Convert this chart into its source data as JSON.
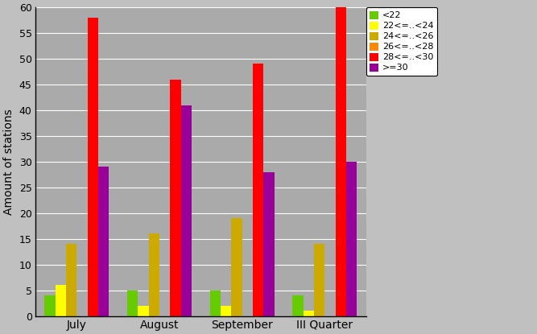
{
  "categories": [
    "July",
    "August",
    "September",
    "III Quarter"
  ],
  "series": [
    {
      "label": "<22",
      "color": "#66cc00",
      "values": [
        4,
        5,
        5,
        4
      ]
    },
    {
      "label": "22<=..<24",
      "color": "#ffff00",
      "values": [
        6,
        2,
        2,
        1
      ]
    },
    {
      "label": "24<=..<26",
      "color": "#ccaa00",
      "values": [
        14,
        16,
        19,
        14
      ]
    },
    {
      "label": "26<=..<28",
      "color": "#ff8800",
      "values": [
        0,
        0,
        0,
        0
      ]
    },
    {
      "label": "28<=..<30",
      "color": "#ff0000",
      "values": [
        58,
        46,
        49,
        60
      ]
    },
    {
      "label": ">=30",
      "color": "#990099",
      "values": [
        29,
        41,
        28,
        30
      ]
    }
  ],
  "ylabel": "Amount of stations",
  "ylim": [
    0,
    60
  ],
  "yticks": [
    0,
    5,
    10,
    15,
    20,
    25,
    30,
    35,
    40,
    45,
    50,
    55,
    60
  ],
  "background_color": "#c0c0c0",
  "plot_bg_color": "#aaaaaa",
  "grid_color": "#ffffff",
  "bar_width": 0.13,
  "figsize": [
    6.67,
    4.15
  ],
  "dpi": 100
}
